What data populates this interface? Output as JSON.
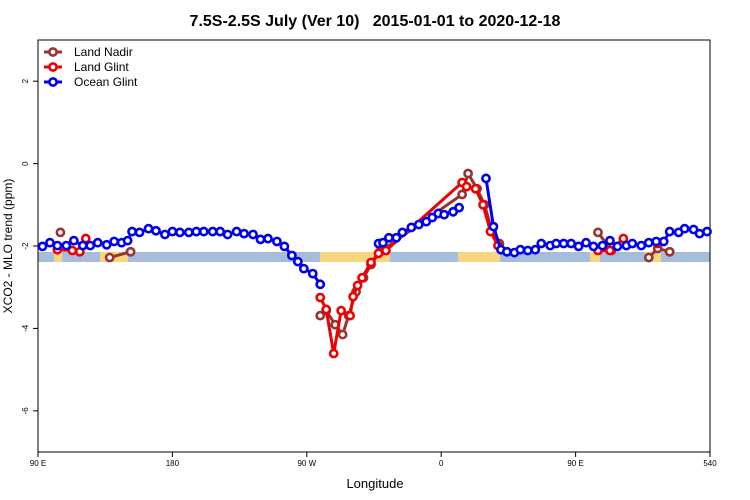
{
  "chart_data": {
    "type": "line",
    "title": "7.5S-2.5S July (Ver 10)   2015-01-01 to 2020-12-18",
    "x_label": "Longitude",
    "y_label": "XCO2 - MLO trend (ppm)",
    "xlim": [
      90,
      540
    ],
    "xticks": [
      {
        "value": 90,
        "label": "90 E"
      },
      180,
      {
        "value": 270,
        "label": "90 W"
      },
      {
        "value": 360,
        "label": "0"
      },
      {
        "value": 450,
        "label": "90 E"
      },
      540
    ],
    "ylim": [
      -7,
      3
    ],
    "yticks": [
      -6,
      -4,
      -2,
      0,
      2
    ],
    "legend": "top-left",
    "series": [
      {
        "name": "Land Nadir",
        "color": "#993333",
        "x": [
          105,
          120,
          138,
          152,
          200,
          279,
          283,
          289,
          294,
          298,
          303,
          308,
          313,
          319,
          374,
          378,
          384,
          389,
          394,
          399,
          430,
          465,
          474,
          490,
          499,
          505,
          513
        ],
        "values": [
          -1.67,
          null,
          -2.28,
          -2.14,
          null,
          -3.69,
          -3.57,
          -3.91,
          -4.15,
          -3.69,
          -3.11,
          -2.77,
          -2.45,
          -2.14,
          -0.75,
          -0.24,
          -0.61,
          -1.0,
          -1.63,
          -1.94,
          null,
          -1.67,
          -2.11,
          null,
          -2.28,
          -2.06,
          -2.14
        ]
      },
      {
        "name": "Land Glint",
        "color": "#ee0000",
        "x": [
          103,
          113,
          118,
          122,
          200,
          279,
          283,
          288,
          293,
          299,
          301,
          304,
          307,
          313,
          318,
          323,
          374,
          377,
          383,
          388,
          393,
          398,
          430,
          465,
          473,
          482,
          490,
          505
        ],
        "values": [
          -2.09,
          -2.11,
          -2.14,
          -1.82,
          null,
          -3.25,
          -3.54,
          -4.61,
          -3.57,
          -3.69,
          -3.23,
          -2.96,
          -2.77,
          -2.4,
          -2.18,
          -2.11,
          -0.46,
          -0.56,
          -0.61,
          -1.0,
          -1.65,
          -1.99,
          null,
          -2.11,
          -2.11,
          -1.82,
          null,
          -1.94
        ]
      },
      {
        "name": "Ocean Glint",
        "color": "#0000ee",
        "x": [
          93,
          98,
          103,
          109,
          114,
          120,
          125,
          130,
          136,
          141,
          146,
          150,
          153,
          158,
          164,
          169,
          175,
          180,
          185,
          191,
          196,
          201,
          207,
          212,
          217,
          223,
          228,
          234,
          239,
          244,
          250,
          255,
          260,
          264,
          268,
          274,
          279,
          300,
          318,
          321,
          325,
          330,
          334,
          340,
          345,
          350,
          354,
          358,
          362,
          368,
          372,
          380,
          390,
          395,
          400,
          404,
          409,
          413,
          418,
          423,
          427,
          433,
          437,
          442,
          447,
          452,
          457,
          462,
          468,
          473,
          478,
          484,
          488,
          494,
          499,
          504,
          509,
          513,
          519,
          523,
          529,
          533,
          538
        ],
        "values": [
          -2.01,
          -1.92,
          -1.99,
          -1.99,
          -1.87,
          -1.99,
          -1.99,
          -1.92,
          -1.97,
          -1.89,
          -1.92,
          -1.87,
          -1.65,
          -1.67,
          -1.58,
          -1.63,
          -1.72,
          -1.65,
          -1.67,
          -1.67,
          -1.65,
          -1.65,
          -1.65,
          -1.65,
          -1.72,
          -1.65,
          -1.7,
          -1.72,
          -1.84,
          -1.82,
          -1.89,
          -2.01,
          -2.23,
          -2.38,
          -2.55,
          -2.67,
          -2.93,
          null,
          -1.94,
          -1.92,
          -1.8,
          -1.8,
          -1.67,
          -1.55,
          -1.48,
          -1.41,
          -1.31,
          -1.21,
          -1.24,
          -1.17,
          -1.07,
          null,
          -0.36,
          -1.53,
          -2.09,
          -2.14,
          -2.16,
          -2.09,
          -2.11,
          -2.09,
          -1.94,
          -1.99,
          -1.94,
          -1.94,
          -1.94,
          -2.01,
          -1.92,
          -2.01,
          -1.99,
          -1.87,
          -2.01,
          -1.99,
          -1.94,
          -1.99,
          -1.92,
          -1.89,
          -1.89,
          -1.65,
          -1.67,
          -1.58,
          -1.6,
          -1.7,
          -1.65
        ]
      }
    ]
  }
}
